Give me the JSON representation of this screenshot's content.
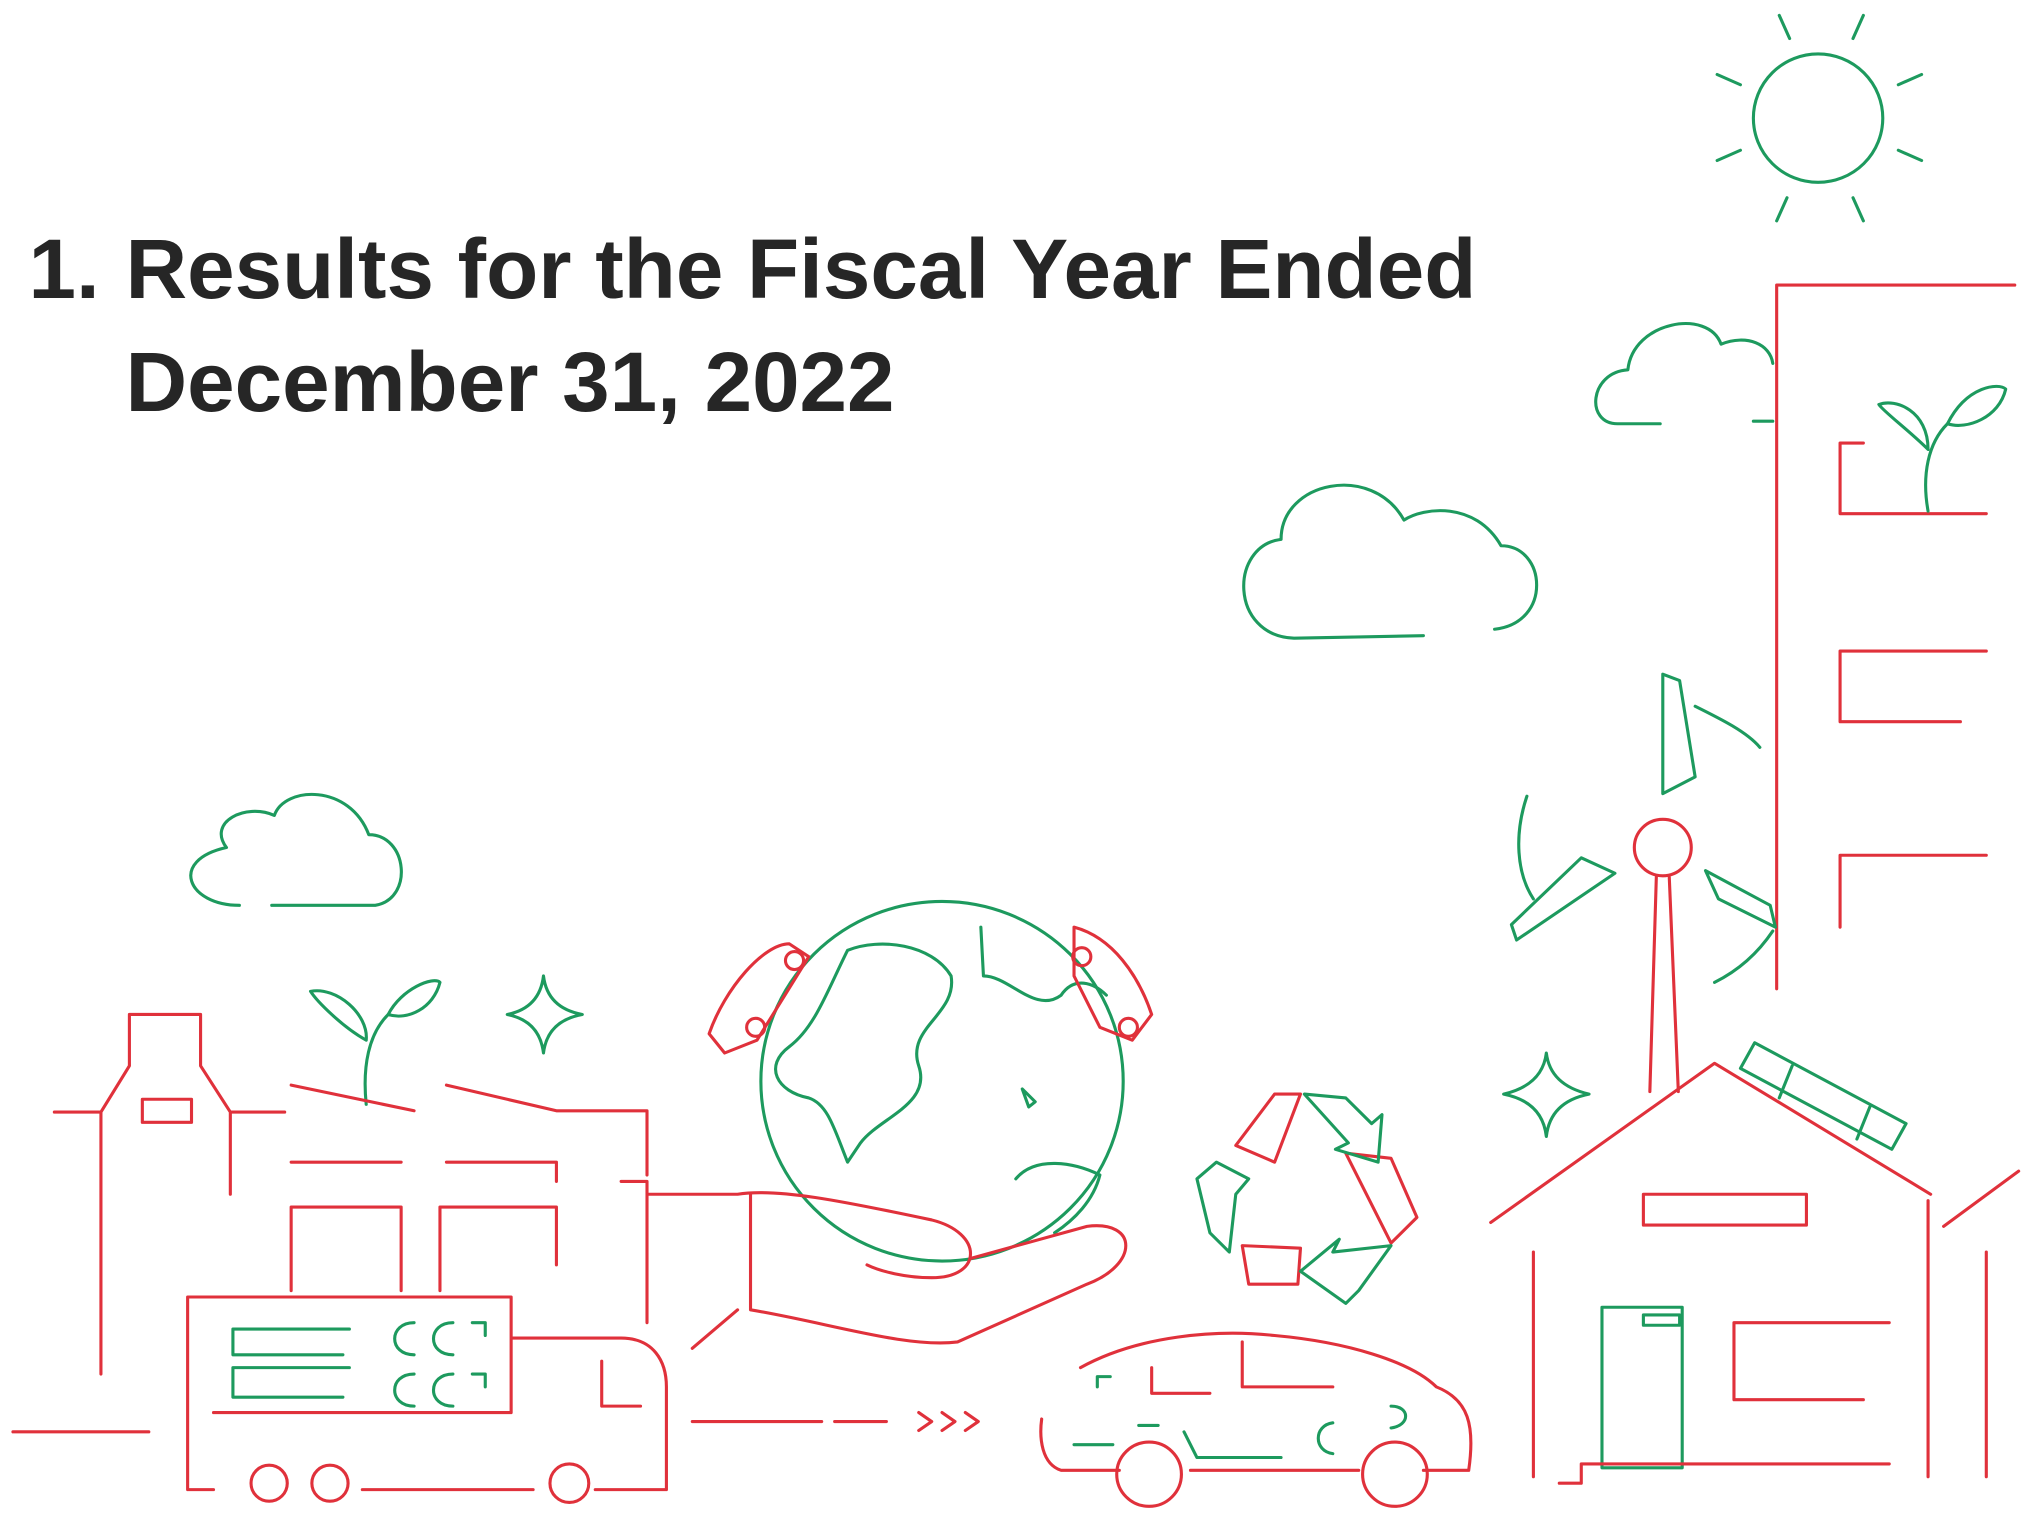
{
  "section": {
    "number": "1.",
    "title_lines": [
      "Results for the Fiscal Year Ended",
      "December 31, 2022"
    ]
  }
}
